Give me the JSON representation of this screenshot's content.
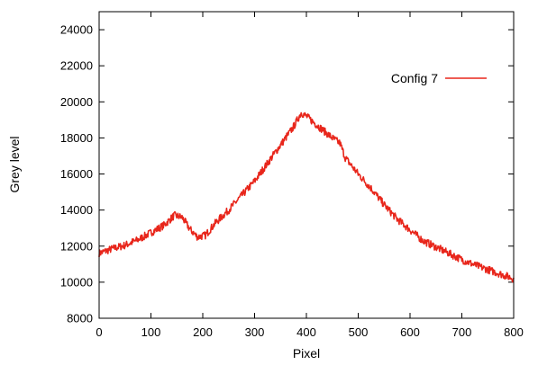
{
  "chart_data": {
    "type": "line",
    "title": "",
    "xlabel": "Pixel",
    "ylabel": "Grey level",
    "xlim": [
      0,
      800
    ],
    "ylim": [
      8000,
      25000
    ],
    "xticks": [
      0,
      100,
      200,
      300,
      400,
      500,
      600,
      700,
      800
    ],
    "yticks": [
      8000,
      10000,
      12000,
      14000,
      16000,
      18000,
      20000,
      22000,
      24000
    ],
    "grid": false,
    "legend_position": "top-right",
    "series": [
      {
        "name": "Config 7",
        "color": "#e8261b",
        "x": [
          0,
          25,
          50,
          75,
          100,
          125,
          145,
          160,
          175,
          190,
          205,
          225,
          250,
          275,
          300,
          325,
          350,
          375,
          390,
          400,
          425,
          450,
          465,
          475,
          500,
          525,
          550,
          575,
          600,
          625,
          650,
          675,
          700,
          725,
          750,
          775,
          800
        ],
        "y": [
          11600,
          11850,
          12050,
          12350,
          12750,
          13150,
          13700,
          13600,
          12950,
          12500,
          12600,
          13300,
          14000,
          14800,
          15600,
          16600,
          17600,
          18600,
          19400,
          19200,
          18600,
          18000,
          17700,
          16900,
          16000,
          15200,
          14300,
          13500,
          12900,
          12300,
          11950,
          11600,
          11250,
          10950,
          10700,
          10450,
          10200
        ]
      }
    ]
  }
}
